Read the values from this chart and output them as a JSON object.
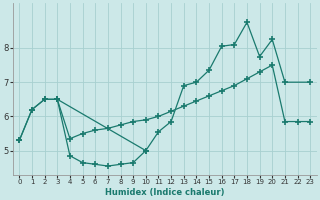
{
  "xlabel": "Humidex (Indice chaleur)",
  "bg_color": "#cce8e8",
  "line_color": "#1a7a6e",
  "grid_color": "#a8d0d0",
  "xlim": [
    -0.5,
    23.5
  ],
  "ylim": [
    4.3,
    9.3
  ],
  "yticks": [
    5,
    6,
    7,
    8
  ],
  "xticks": [
    0,
    1,
    2,
    3,
    4,
    5,
    6,
    7,
    8,
    9,
    10,
    11,
    12,
    13,
    14,
    15,
    16,
    17,
    18,
    19,
    20,
    21,
    22,
    23
  ],
  "line1_x": [
    0,
    1,
    2,
    3,
    10,
    11,
    12,
    13,
    14,
    15,
    16,
    17,
    18,
    19,
    20,
    21,
    23
  ],
  "line1_y": [
    5.3,
    6.2,
    6.5,
    6.5,
    5.0,
    5.55,
    5.85,
    6.9,
    7.0,
    7.35,
    8.05,
    8.1,
    8.75,
    7.75,
    8.25,
    7.0,
    7.0
  ],
  "line2_x": [
    3,
    4,
    5,
    6,
    7,
    8,
    9,
    10
  ],
  "line2_y": [
    6.5,
    4.85,
    4.65,
    4.6,
    4.55,
    4.6,
    4.65,
    5.0
  ],
  "line3_x": [
    0,
    1,
    2,
    3,
    4,
    5,
    6,
    7,
    8,
    9,
    10,
    11,
    12,
    13,
    14,
    15,
    16,
    17,
    18,
    19,
    20,
    21,
    22,
    23
  ],
  "line3_y": [
    5.3,
    6.2,
    6.5,
    6.5,
    5.35,
    5.5,
    5.6,
    5.65,
    5.75,
    5.85,
    5.9,
    6.0,
    6.15,
    6.3,
    6.45,
    6.6,
    6.75,
    6.9,
    7.1,
    7.3,
    7.5,
    5.85,
    5.85,
    5.85
  ]
}
